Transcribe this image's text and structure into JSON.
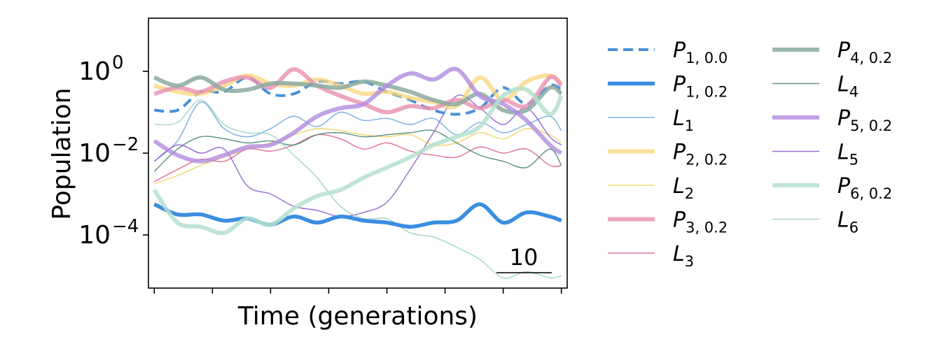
{
  "chart_data": {
    "type": "line",
    "title": "",
    "xlabel": "Time (generations)",
    "ylabel": "Population",
    "yscale": "log",
    "ylim_log10": [
      -5.3,
      1.3
    ],
    "xlim": [
      -0.5,
      35.5
    ],
    "x_ticks": [
      0,
      5,
      10,
      15,
      20,
      25,
      30,
      35
    ],
    "x_tick_labels_shown": false,
    "y_ticks": [
      {
        "value_log10": 0,
        "label": "10^0"
      },
      {
        "value_log10": -2,
        "label": "10^-2"
      },
      {
        "value_log10": -4,
        "label": "10^-4"
      }
    ],
    "scale_bar": {
      "label": "10",
      "length": 10
    },
    "grid": false,
    "legend_placement": "outside right, two columns",
    "x": [
      0,
      2,
      4,
      6,
      8,
      10,
      12,
      14,
      16,
      18,
      20,
      22,
      24,
      26,
      28,
      30,
      32,
      34,
      35
    ],
    "series": [
      {
        "name": "P_{1, 0.0}",
        "base": "P",
        "sub": "1, 0.0",
        "color": "#4a90d9",
        "style": "dashed",
        "width": 4,
        "opacity": 1.0,
        "values_log10": [
          -0.95,
          -0.95,
          -0.5,
          -0.5,
          -0.15,
          -0.55,
          -0.55,
          -0.25,
          -0.3,
          -0.25,
          -0.5,
          -0.7,
          -0.95,
          -1.05,
          -0.9,
          -0.4,
          -0.8,
          -0.35,
          -0.45
        ]
      },
      {
        "name": "P_{1, 0.2}",
        "base": "P",
        "sub": "1, 0.2",
        "color": "#3a8ee0",
        "style": "solid",
        "width": 5.5,
        "opacity": 1.0,
        "values_log10": [
          -3.25,
          -3.5,
          -3.5,
          -3.65,
          -3.6,
          -3.75,
          -3.55,
          -3.7,
          -3.55,
          -3.65,
          -3.7,
          -3.8,
          -3.7,
          -3.65,
          -3.25,
          -3.7,
          -3.45,
          -3.55,
          -3.65
        ]
      },
      {
        "name": "L_1",
        "base": "L",
        "sub": "1",
        "color": "#74a9e0",
        "style": "solid",
        "width": 1.5,
        "opacity": 0.9,
        "values_log10": [
          -2.2,
          -1.7,
          -0.75,
          -1.4,
          -1.6,
          -1.4,
          -1.1,
          -1.35,
          -1.0,
          -1.2,
          -1.15,
          -1.3,
          -1.15,
          -1.55,
          -1.25,
          -1.5,
          -1.3,
          -1.1,
          -1.45
        ]
      },
      {
        "name": "P_{2, 0.2}",
        "base": "P",
        "sub": "2, 0.2",
        "color": "#f8d67a",
        "style": "solid",
        "width": 6,
        "opacity": 0.75,
        "values_log10": [
          -0.35,
          -0.5,
          -0.55,
          -0.35,
          -0.1,
          -0.3,
          -0.35,
          -0.2,
          -0.35,
          -0.55,
          -0.5,
          -0.65,
          -0.75,
          -0.85,
          -0.15,
          -0.7,
          -0.25,
          -0.1,
          -0.3
        ]
      },
      {
        "name": "L_2",
        "base": "L",
        "sub": "2",
        "color": "#f0d565",
        "style": "solid",
        "width": 1.5,
        "opacity": 0.9,
        "values_log10": [
          -2.75,
          -2.55,
          -2.3,
          -2.1,
          -1.9,
          -1.75,
          -1.55,
          -1.4,
          -1.45,
          -1.55,
          -1.6,
          -1.55,
          -1.8,
          -1.75,
          -1.5,
          -1.65,
          -1.4,
          -1.55,
          -1.75
        ]
      },
      {
        "name": "P_{3, 0.2}",
        "base": "P",
        "sub": "3, 0.2",
        "color": "#e890b2",
        "style": "solid",
        "width": 6,
        "opacity": 0.8,
        "values_log10": [
          -0.55,
          -0.4,
          -0.5,
          -0.25,
          -0.15,
          -0.4,
          0.05,
          -0.35,
          -0.6,
          -0.8,
          -1.0,
          -0.85,
          -0.9,
          -0.7,
          -0.9,
          -0.7,
          -0.85,
          -0.15,
          -0.35
        ]
      },
      {
        "name": "L_3",
        "base": "L",
        "sub": "3",
        "color": "#e06690",
        "style": "solid",
        "width": 1.5,
        "opacity": 0.9,
        "values_log10": [
          -2.7,
          -2.4,
          -2.15,
          -2.2,
          -1.9,
          -1.95,
          -1.8,
          -1.55,
          -1.65,
          -1.9,
          -1.75,
          -1.95,
          -2.05,
          -2.1,
          -1.85,
          -2.0,
          -1.9,
          -2.3,
          -2.3
        ]
      },
      {
        "name": "P_{4, 0.2}",
        "base": "P",
        "sub": "4, 0.2",
        "color": "#8aaaa0",
        "style": "solid",
        "width": 6,
        "opacity": 0.85,
        "values_log10": [
          -0.15,
          -0.35,
          -0.15,
          -0.45,
          -0.45,
          -0.3,
          -0.3,
          -0.35,
          -0.4,
          -0.25,
          -0.35,
          -0.5,
          -0.7,
          -0.8,
          -0.55,
          -0.95,
          -0.95,
          -0.4,
          -0.55
        ]
      },
      {
        "name": "L_4",
        "base": "L",
        "sub": "4",
        "color": "#4f8a78",
        "style": "solid",
        "width": 1.5,
        "opacity": 0.9,
        "values_log10": [
          -2.45,
          -1.9,
          -1.6,
          -1.65,
          -1.75,
          -1.7,
          -1.8,
          -1.55,
          -1.5,
          -1.6,
          -1.55,
          -1.5,
          -1.45,
          -1.75,
          -2.05,
          -2.2,
          -2.35,
          -1.9,
          -2.3
        ]
      },
      {
        "name": "P_{5, 0.2}",
        "base": "P",
        "sub": "5, 0.2",
        "color": "#b28be0",
        "style": "solid",
        "width": 6,
        "opacity": 0.8,
        "values_log10": [
          -1.7,
          -2.05,
          -2.2,
          -2.05,
          -1.85,
          -1.8,
          -1.5,
          -1.1,
          -0.9,
          -0.8,
          -0.35,
          -0.05,
          -0.2,
          0.05,
          -0.6,
          -0.8,
          -1.2,
          -1.8,
          -2.0
        ]
      },
      {
        "name": "L_5",
        "base": "L",
        "sub": "5",
        "color": "#8e63cc",
        "style": "solid",
        "width": 1.5,
        "opacity": 0.9,
        "values_log10": [
          -2.2,
          -1.8,
          -2.0,
          -1.9,
          -2.8,
          -3.0,
          -3.3,
          -3.4,
          -3.55,
          -3.45,
          -3.2,
          -2.4,
          -1.5,
          -0.6,
          -0.9,
          -1.3,
          -0.9,
          -1.6,
          -1.8
        ]
      },
      {
        "name": "P_{6, 0.2}",
        "base": "P",
        "sub": "6, 0.2",
        "color": "#b5e0cf",
        "style": "solid",
        "width": 6,
        "opacity": 0.85,
        "values_log10": [
          -2.9,
          -3.7,
          -3.8,
          -3.95,
          -3.6,
          -3.75,
          -3.35,
          -3.05,
          -2.9,
          -2.6,
          -2.35,
          -2.1,
          -1.8,
          -1.6,
          -1.35,
          -0.6,
          -0.45,
          -1.05,
          -0.6
        ]
      },
      {
        "name": "L_6",
        "base": "L",
        "sub": "6",
        "color": "#9ed3c2",
        "style": "solid",
        "width": 1.5,
        "opacity": 0.9,
        "values_log10": [
          -1.3,
          -1.25,
          -0.7,
          -1.3,
          -1.5,
          -1.55,
          -2.05,
          -2.6,
          -3.3,
          -3.6,
          -3.6,
          -3.95,
          -4.05,
          -4.3,
          -4.6,
          -5.05,
          -4.9,
          -5.05,
          -5.0
        ]
      }
    ]
  }
}
